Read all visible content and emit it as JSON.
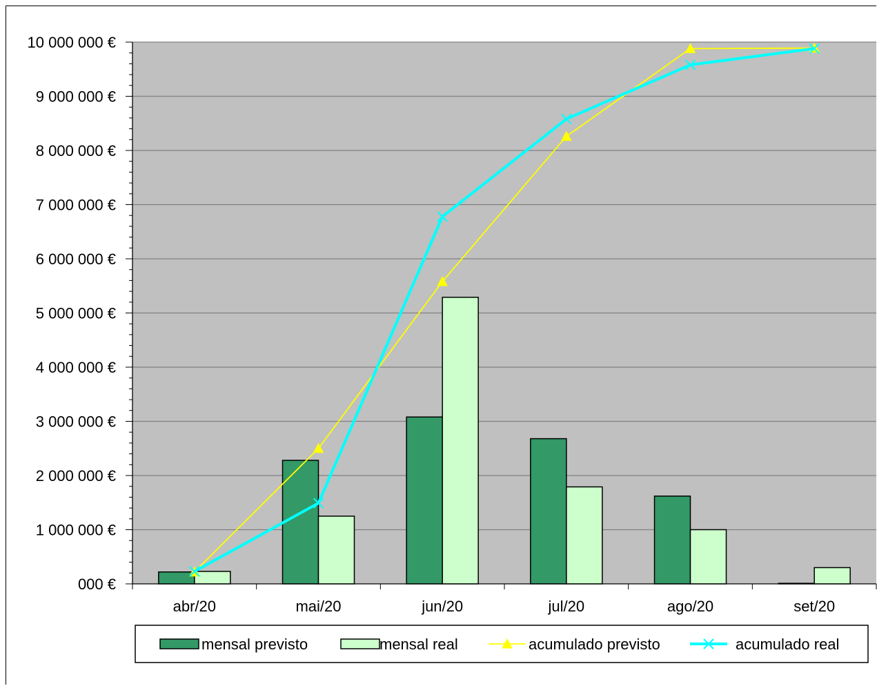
{
  "chart_data": {
    "type": "bar",
    "categories": [
      "abr/20",
      "mai/20",
      "jun/20",
      "jul/20",
      "ago/20",
      "set/20"
    ],
    "y_ticks": [
      "000 €",
      "1 000 000 €",
      "2 000 000 €",
      "3 000 000 €",
      "4 000 000 €",
      "5 000 000 €",
      "6 000 000 €",
      "7 000 000 €",
      "8 000 000 €",
      "9 000 000 €",
      "10 000 000 €"
    ],
    "ylim": [
      0,
      10000000
    ],
    "grid": true,
    "legend_position": "bottom",
    "series": [
      {
        "name": "mensal previsto",
        "kind": "bar",
        "color": "#339966",
        "values": [
          220000,
          2280000,
          3080000,
          2680000,
          1620000,
          10000
        ]
      },
      {
        "name": "mensal real",
        "kind": "bar",
        "color": "#CCFFCC",
        "values": [
          230000,
          1250000,
          5290000,
          1790000,
          1000000,
          300000
        ]
      },
      {
        "name": "acumulado previsto",
        "kind": "line",
        "marker": "triangle",
        "color": "#FFFF00",
        "values": [
          220000,
          2500000,
          5580000,
          8260000,
          9880000,
          9890000
        ]
      },
      {
        "name": "acumulado real",
        "kind": "line",
        "marker": "x",
        "color": "#00FFFF",
        "values": [
          230000,
          1490000,
          6780000,
          8580000,
          9580000,
          9880000
        ]
      }
    ],
    "plot_background": "#C0C0C0"
  }
}
